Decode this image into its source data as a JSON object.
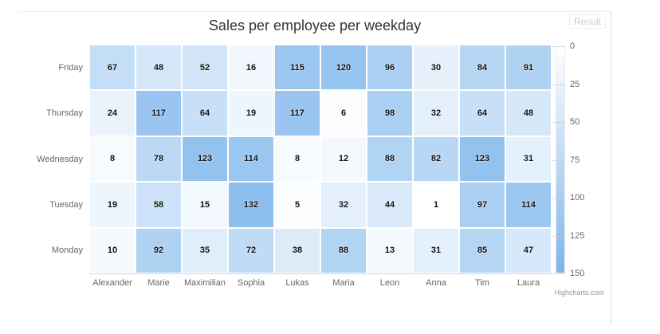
{
  "result_pane": {
    "label": "Result"
  },
  "chart": {
    "title": "Sales per employee per weekday",
    "credits_label": "Highcharts.com",
    "context_menu_icon": "hamburger-icon"
  },
  "colors": {
    "heatmap_min": "#ffffff",
    "heatmap_max": "#7cb5ec",
    "cell_border": "#ffffff",
    "axis_line": "#ccd6eb",
    "axis_label_grey": "#666666",
    "title_grey": "#333333",
    "credits_grey": "#999999",
    "data_label": "#111111"
  },
  "chart_data": {
    "type": "heatmap",
    "title": "Sales per employee per weekday",
    "x_categories": [
      "Alexander",
      "Marie",
      "Maximilian",
      "Sophia",
      "Lukas",
      "Maria",
      "Leon",
      "Anna",
      "Tim",
      "Laura"
    ],
    "y_categories": [
      "Friday",
      "Thursday",
      "Wednesday",
      "Tuesday",
      "Monday"
    ],
    "series": [
      {
        "name": "Friday",
        "values": [
          67,
          48,
          52,
          16,
          115,
          120,
          96,
          30,
          84,
          91
        ]
      },
      {
        "name": "Thursday",
        "values": [
          24,
          117,
          64,
          19,
          117,
          6,
          98,
          32,
          64,
          48
        ]
      },
      {
        "name": "Wednesday",
        "values": [
          8,
          78,
          123,
          114,
          8,
          12,
          88,
          82,
          123,
          31
        ]
      },
      {
        "name": "Tuesday",
        "values": [
          19,
          58,
          15,
          132,
          5,
          32,
          44,
          1,
          97,
          114
        ]
      },
      {
        "name": "Monday",
        "values": [
          10,
          92,
          35,
          72,
          38,
          88,
          13,
          31,
          85,
          47
        ]
      }
    ],
    "color_axis": {
      "min": 0,
      "max": 150,
      "tick_labels": [
        0,
        25,
        50,
        75,
        100,
        125,
        150
      ],
      "min_color": "#ffffff",
      "max_color": "#7cb5ec",
      "legend_position": "right"
    },
    "grid": "off",
    "legend_position": "right"
  }
}
